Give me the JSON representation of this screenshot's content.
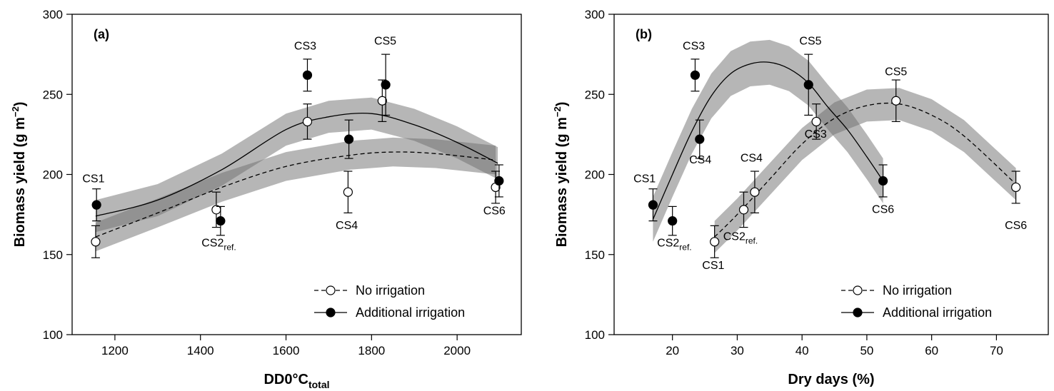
{
  "chart_data": [
    {
      "type": "scatter",
      "panel_label": "(a)",
      "xlabel_main": "DD0°C",
      "xlabel_sub": "total",
      "ylabel": "Biomass yield (g m",
      "ylabel_sup": "−2",
      "ylabel_close": ")",
      "xlim": [
        1100,
        2150
      ],
      "ylim": [
        100,
        300
      ],
      "xticks": [
        1200,
        1400,
        1600,
        1800,
        2000
      ],
      "yticks": [
        100,
        150,
        200,
        250,
        300
      ],
      "series": [
        {
          "name": "No irrigation",
          "marker": "open",
          "line": "dashed",
          "points": [
            {
              "site": "CS1",
              "x": 1155,
              "y": 158,
              "err": 10
            },
            {
              "site": "CS2",
              "x": 1437,
              "y": 178,
              "err": 11
            },
            {
              "site": "CS3",
              "x": 1650,
              "y": 233,
              "err": 11
            },
            {
              "site": "CS4",
              "x": 1745,
              "y": 189,
              "err": 13
            },
            {
              "site": "CS5",
              "x": 1825,
              "y": 246,
              "err": 13
            },
            {
              "site": "CS6",
              "x": 2090,
              "y": 192,
              "err": 10
            }
          ],
          "fit": [
            [
              1155,
              161
            ],
            [
              1300,
              176
            ],
            [
              1450,
              192
            ],
            [
              1600,
              205
            ],
            [
              1750,
              212
            ],
            [
              1850,
              214
            ],
            [
              1950,
              213
            ],
            [
              2090,
              209
            ]
          ],
          "band_half_width": 9
        },
        {
          "name": "Additional irrigation",
          "marker": "filled",
          "line": "solid",
          "points": [
            {
              "site": "CS1",
              "x": 1157,
              "y": 181,
              "err": 10
            },
            {
              "site": "CS2",
              "x": 1447,
              "y": 171,
              "err": 9
            },
            {
              "site": "CS3",
              "x": 1650,
              "y": 262,
              "err": 10
            },
            {
              "site": "CS4",
              "x": 1747,
              "y": 222,
              "err": 12
            },
            {
              "site": "CS5",
              "x": 1833,
              "y": 256,
              "err": 19
            },
            {
              "site": "CS6",
              "x": 2098,
              "y": 196,
              "err": 10
            }
          ],
          "fit": [
            [
              1155,
              174
            ],
            [
              1300,
              184
            ],
            [
              1450,
              203
            ],
            [
              1600,
              228
            ],
            [
              1700,
              236
            ],
            [
              1800,
              238
            ],
            [
              1900,
              231
            ],
            [
              2000,
              220
            ],
            [
              2095,
              207
            ]
          ],
          "band_half_width": 10
        }
      ],
      "annotations": [
        {
          "text": "CS1",
          "sub": "",
          "x": 1150,
          "y": 195
        },
        {
          "text": "CS2",
          "sub": "ref.",
          "x": 1443,
          "y": 155
        },
        {
          "text": "CS3",
          "sub": "",
          "x": 1645,
          "y": 278
        },
        {
          "text": "CS4",
          "sub": "",
          "x": 1742,
          "y": 166
        },
        {
          "text": "CS5",
          "sub": "",
          "x": 1832,
          "y": 281
        },
        {
          "text": "CS6",
          "sub": "",
          "x": 2087,
          "y": 175
        }
      ],
      "legend_position": "bottom-right"
    },
    {
      "type": "scatter",
      "panel_label": "(b)",
      "xlabel_main": "Dry days (%)",
      "xlabel_sub": "",
      "ylabel": "Biomass yield (g m",
      "ylabel_sup": "−2",
      "ylabel_close": ")",
      "xlim": [
        11,
        78
      ],
      "ylim": [
        100,
        300
      ],
      "xticks": [
        20,
        30,
        40,
        50,
        60,
        70
      ],
      "yticks": [
        100,
        150,
        200,
        250,
        300
      ],
      "series": [
        {
          "name": "No irrigation",
          "marker": "open",
          "line": "dashed",
          "points": [
            {
              "site": "CS1",
              "x": 26.5,
              "y": 158,
              "err": 10
            },
            {
              "site": "CS2",
              "x": 31,
              "y": 178,
              "err": 11
            },
            {
              "site": "CS4",
              "x": 32.7,
              "y": 189,
              "err": 13
            },
            {
              "site": "CS3",
              "x": 42.2,
              "y": 233,
              "err": 11
            },
            {
              "site": "CS5",
              "x": 54.5,
              "y": 246,
              "err": 13
            },
            {
              "site": "CS6",
              "x": 73,
              "y": 192,
              "err": 10
            }
          ],
          "fit": [
            [
              26.5,
              161
            ],
            [
              30,
              175
            ],
            [
              35,
              197
            ],
            [
              40,
              219
            ],
            [
              45,
              235
            ],
            [
              50,
              243
            ],
            [
              55,
              244
            ],
            [
              60,
              237
            ],
            [
              65,
              224
            ],
            [
              73,
              194
            ]
          ],
          "band_half_width": 10
        },
        {
          "name": "Additional irrigation",
          "marker": "filled",
          "line": "solid",
          "points": [
            {
              "site": "CS1",
              "x": 17,
              "y": 181,
              "err": 10
            },
            {
              "site": "CS2",
              "x": 20,
              "y": 171,
              "err": 9
            },
            {
              "site": "CS3",
              "x": 23.5,
              "y": 262,
              "err": 10
            },
            {
              "site": "CS4",
              "x": 24.2,
              "y": 222,
              "err": 12
            },
            {
              "site": "CS5",
              "x": 41,
              "y": 256,
              "err": 19
            },
            {
              "site": "CS6",
              "x": 52.5,
              "y": 196,
              "err": 10
            }
          ],
          "fit": [
            [
              17,
              172
            ],
            [
              20,
              200
            ],
            [
              23,
              227
            ],
            [
              26,
              249
            ],
            [
              29,
              263
            ],
            [
              32,
              269
            ],
            [
              35,
              270
            ],
            [
              38,
              266
            ],
            [
              41,
              257
            ],
            [
              44,
              242
            ],
            [
              47,
              228
            ],
            [
              50,
              211
            ],
            [
              52.5,
              196
            ]
          ],
          "band_half_width": 14
        }
      ],
      "annotations": [
        {
          "text": "CS1",
          "sub": "",
          "x": 15.7,
          "y": 195
        },
        {
          "text": "CS2",
          "sub": "ref.",
          "x": 20.3,
          "y": 155
        },
        {
          "text": "CS3",
          "sub": "",
          "x": 23.3,
          "y": 278
        },
        {
          "text": "CS4",
          "sub": "",
          "x": 24.3,
          "y": 207
        },
        {
          "text": "CS1",
          "sub": "",
          "x": 26.3,
          "y": 141
        },
        {
          "text": "CS2",
          "sub": "ref.",
          "x": 30.5,
          "y": 159
        },
        {
          "text": "CS4",
          "sub": "",
          "x": 32.2,
          "y": 208
        },
        {
          "text": "CS3",
          "sub": "",
          "x": 42.1,
          "y": 223
        },
        {
          "text": "CS5",
          "sub": "",
          "x": 41.3,
          "y": 281
        },
        {
          "text": "CS5",
          "sub": "",
          "x": 54.5,
          "y": 262
        },
        {
          "text": "CS6",
          "sub": "",
          "x": 52.5,
          "y": 176
        },
        {
          "text": "CS6",
          "sub": "",
          "x": 73,
          "y": 166
        }
      ],
      "legend_position": "bottom-right"
    }
  ]
}
